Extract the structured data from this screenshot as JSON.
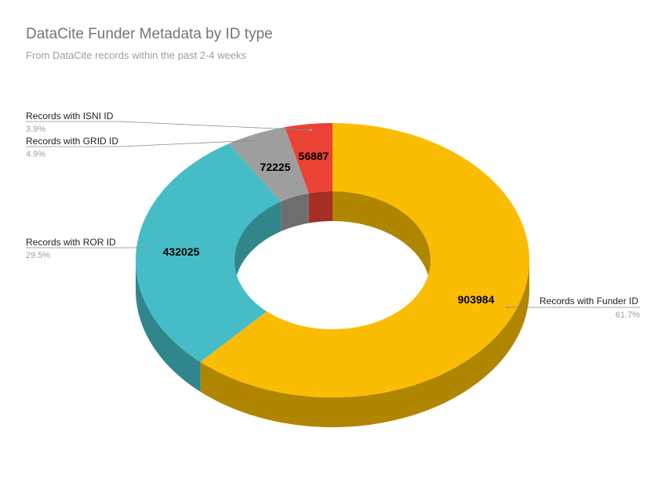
{
  "chart_data": {
    "type": "pie",
    "variant": "3d-donut",
    "title": "DataCite Funder Metadata by ID type",
    "subtitle": "From DataCite records within the past 2-4 weeks",
    "legend": "labels-with-leader-lines",
    "slices": [
      {
        "name": "Records with Funder ID",
        "value": 903984,
        "percent": "61.7%",
        "color": "#FBBC04",
        "side_color": "#B08500"
      },
      {
        "name": "Records with ROR ID",
        "value": 432025,
        "percent": "29.5%",
        "color": "#46BDC6",
        "side_color": "#31868C"
      },
      {
        "name": "Records with GRID ID",
        "value": 72225,
        "percent": "4.9%",
        "color": "#9E9E9E",
        "side_color": "#6E6E6E"
      },
      {
        "name": "Records with ISNI ID",
        "value": 56887,
        "percent": "3.9%",
        "color": "#EA4335",
        "side_color": "#A52E25"
      }
    ]
  }
}
